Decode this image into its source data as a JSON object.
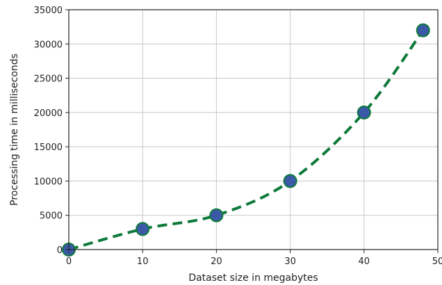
{
  "chart_data": {
    "type": "line",
    "title": "",
    "xlabel": "Dataset size in megabytes",
    "ylabel": "Processing time in milliseconds",
    "xlim": [
      0,
      50
    ],
    "ylim": [
      0,
      35000
    ],
    "x_ticks": [
      0,
      10,
      20,
      30,
      40,
      50
    ],
    "y_ticks": [
      0,
      5000,
      10000,
      15000,
      20000,
      25000,
      30000,
      35000
    ],
    "grid": true,
    "legend": "none",
    "series": [
      {
        "x": [
          0,
          10,
          20,
          30,
          40,
          48
        ],
        "y": [
          0,
          3000,
          5000,
          10000,
          20000,
          32000
        ],
        "line_style": "dashed",
        "line_color": "#0e7a3a",
        "marker": "circle",
        "marker_fill": "#3a5aa8",
        "marker_edge": "#0e7a3a"
      }
    ]
  }
}
